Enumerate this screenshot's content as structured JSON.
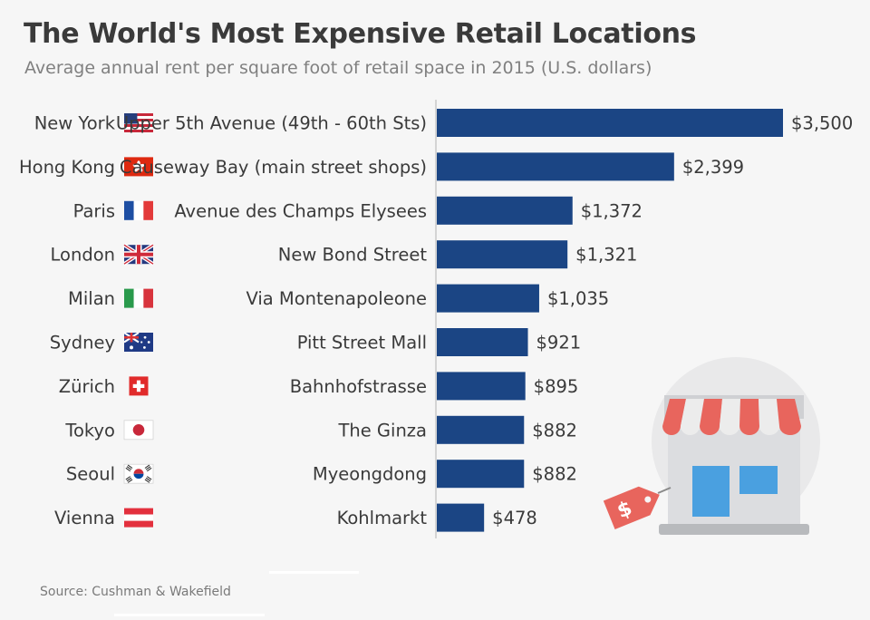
{
  "header": {
    "title": "The World's Most Expensive Retail Locations",
    "subtitle": "Average annual rent per square foot of retail space in 2015 (U.S. dollars)"
  },
  "footer": {
    "source": "Source: Cushman & Wakefield"
  },
  "colors": {
    "bar": "#1b4584",
    "axis": "#bdbdbd",
    "text": "#3a3a3a"
  },
  "chart_data": {
    "type": "bar",
    "orientation": "horizontal",
    "title": "The World's Most Expensive Retail Locations",
    "subtitle": "Average annual rent per square foot of retail space in 2015 (U.S. dollars)",
    "xlabel": "",
    "ylabel": "",
    "xlim": [
      0,
      3500
    ],
    "grid": false,
    "value_prefix": "$",
    "rows": [
      {
        "city": "New York",
        "flag": "usa-flag-icon",
        "street": "Upper 5th Avenue (49th - 60th Sts)",
        "value": 3500,
        "label": "$3,500"
      },
      {
        "city": "Hong Kong",
        "flag": "hong-kong-flag-icon",
        "street": "Causeway Bay (main street shops)",
        "value": 2399,
        "label": "$2,399"
      },
      {
        "city": "Paris",
        "flag": "france-flag-icon",
        "street": "Avenue des Champs Elysees",
        "value": 1372,
        "label": "$1,372"
      },
      {
        "city": "London",
        "flag": "uk-flag-icon",
        "street": "New Bond Street",
        "value": 1321,
        "label": "$1,321"
      },
      {
        "city": "Milan",
        "flag": "italy-flag-icon",
        "street": "Via Montenapoleone",
        "value": 1035,
        "label": "$1,035"
      },
      {
        "city": "Sydney",
        "flag": "australia-flag-icon",
        "street": "Pitt Street Mall",
        "value": 921,
        "label": "$921"
      },
      {
        "city": "Zürich",
        "flag": "switzerland-flag-icon",
        "street": "Bahnhofstrasse",
        "value": 895,
        "label": "$895"
      },
      {
        "city": "Tokyo",
        "flag": "japan-flag-icon",
        "street": "The Ginza",
        "value": 882,
        "label": "$882"
      },
      {
        "city": "Seoul",
        "flag": "south-korea-flag-icon",
        "street": "Myeongdong",
        "value": 882,
        "label": "$882"
      },
      {
        "city": "Vienna",
        "flag": "austria-flag-icon",
        "street": "Kohlmarkt",
        "value": 478,
        "label": "$478"
      }
    ]
  },
  "illustration": {
    "icon": "storefront-icon",
    "tag_icon": "price-tag-icon",
    "tag_symbol": "$"
  }
}
